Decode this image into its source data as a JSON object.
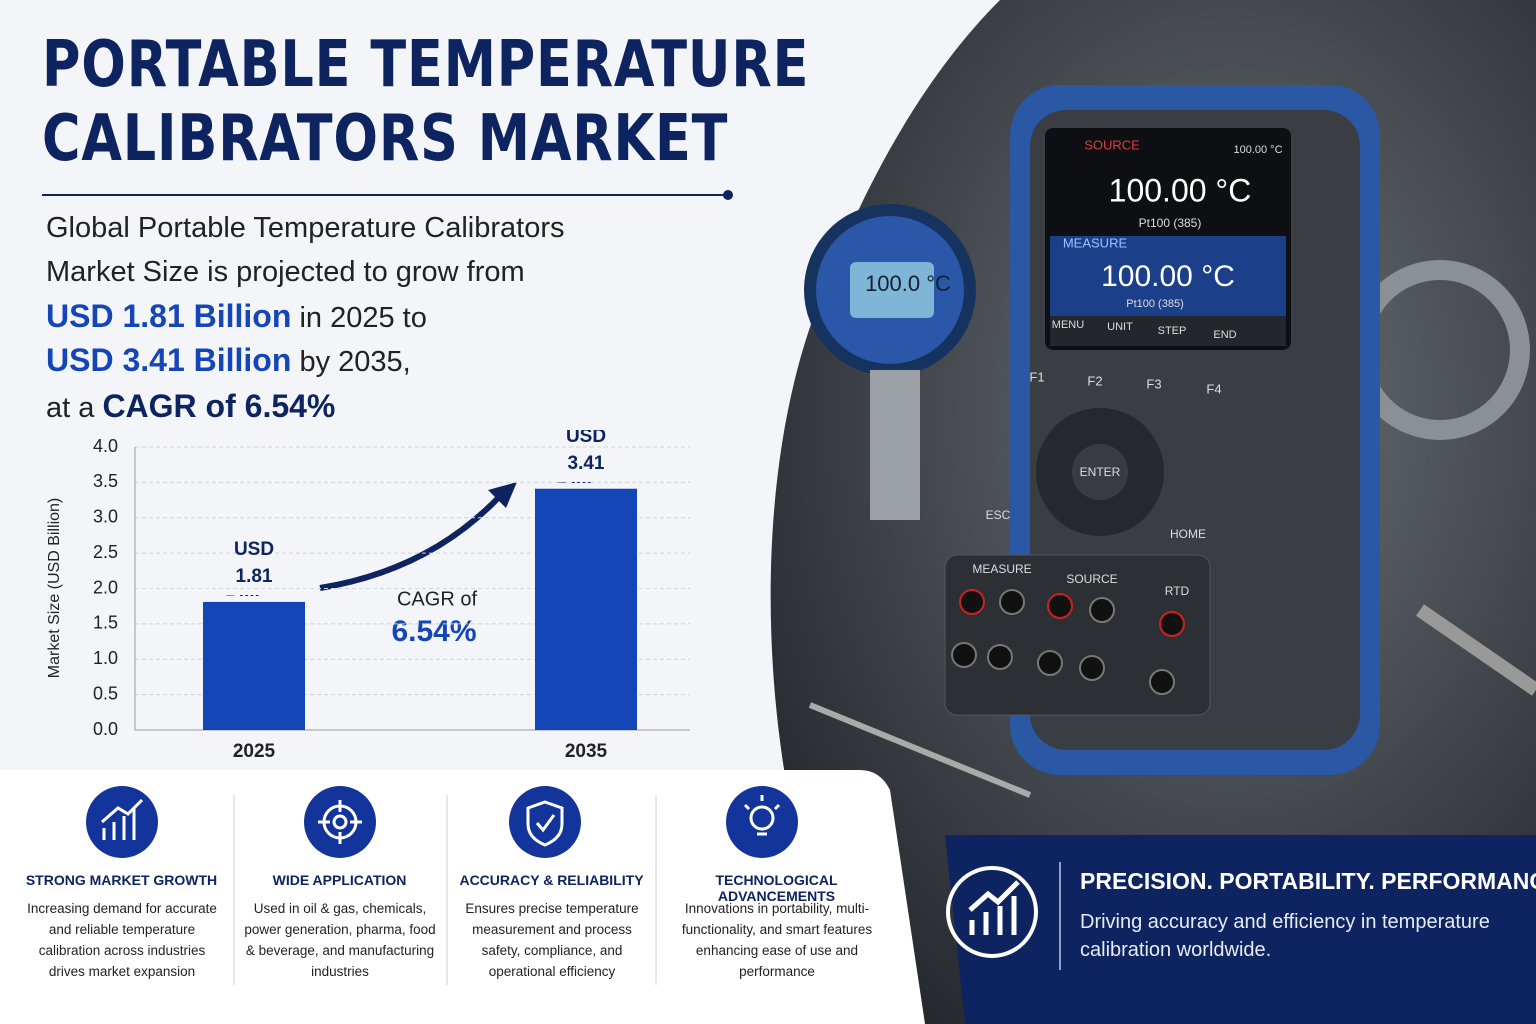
{
  "header": {
    "title_lines": [
      "PORTABLE TEMPERATURE",
      "CALIBRATORS MARKET"
    ]
  },
  "intro": {
    "line_1": "Global Portable Temperature Calibrators",
    "line_2": "Market Size is projected to grow from",
    "value_2025": "USD 1.81 Billion",
    "text_2025": "in 2025 to",
    "value_2035": "USD 3.41 Billion",
    "text_2035": "by 2035,",
    "text_cagr": "at a",
    "cagr": "CAGR of 6.54%"
  },
  "chart_data": {
    "type": "bar",
    "categories": [
      "2025",
      "2035"
    ],
    "values": [
      1.81,
      3.41
    ],
    "value_labels": [
      "USD 1.81 Billion",
      "USD 3.41 Billion"
    ],
    "color": "#1446b8",
    "ylabel": "Market Size (USD Billion)",
    "ylim": [
      0,
      4
    ],
    "yticks": [
      {
        "value": 0,
        "label": "0.0"
      },
      {
        "value": 0.5,
        "label": "0.5"
      },
      {
        "value": 1,
        "label": "1.0"
      },
      {
        "value": 1.5,
        "label": "1.5"
      },
      {
        "value": 2,
        "label": "2.0"
      },
      {
        "value": 2.5,
        "label": "2.5"
      },
      {
        "value": 3,
        "label": "3.0"
      },
      {
        "value": 3.5,
        "label": "3.5"
      },
      {
        "value": 4,
        "label": "4.0"
      }
    ],
    "grid": true,
    "annotation": {
      "text": "CAGR of",
      "value": "6.54%"
    }
  },
  "features": [
    {
      "title": "STRONG MARKET GROWTH",
      "description": "Increasing demand for accurate and reliable temperature calibration across industries drives market expansion"
    },
    {
      "title": "WIDE APPLICATION",
      "description": "Used in oil & gas, chemicals, power generation, pharma, food & beverage, and manufacturing industries"
    },
    {
      "title": "ACCURACY & RELIABILITY",
      "description": "Ensures precise temperature measurement and process safety, compliance, and operational efficiency"
    },
    {
      "title": "TECHNOLOGICAL ADVANCEMENTS",
      "description": "Innovations in portability, multi-functionality, and smart features enhancing ease of use and performance"
    }
  ],
  "banner": {
    "title": "PRECISION. PORTABILITY. PERFORMANCE.",
    "text": "Driving accuracy and efficiency in temperature calibration worldwide."
  },
  "device": {
    "source": "SOURCE",
    "setpoint": "100.00 °C",
    "reading_1": "100.00 °C",
    "sensor_1": "Pt100 (385)",
    "measure": "MEASURE",
    "reading_2": "100.00 °C",
    "sensor_2": "Pt100 (385)",
    "softkeys": [
      "MENU",
      "UNIT",
      "STEP",
      "END"
    ],
    "fkeys": [
      "F1",
      "F2",
      "F3",
      "F4"
    ],
    "enter": "ENTER",
    "esc": "ESC",
    "home": "HOME",
    "ports": [
      "MEASURE",
      "SOURCE",
      "RTD"
    ],
    "gauge": "100.0 °C"
  }
}
